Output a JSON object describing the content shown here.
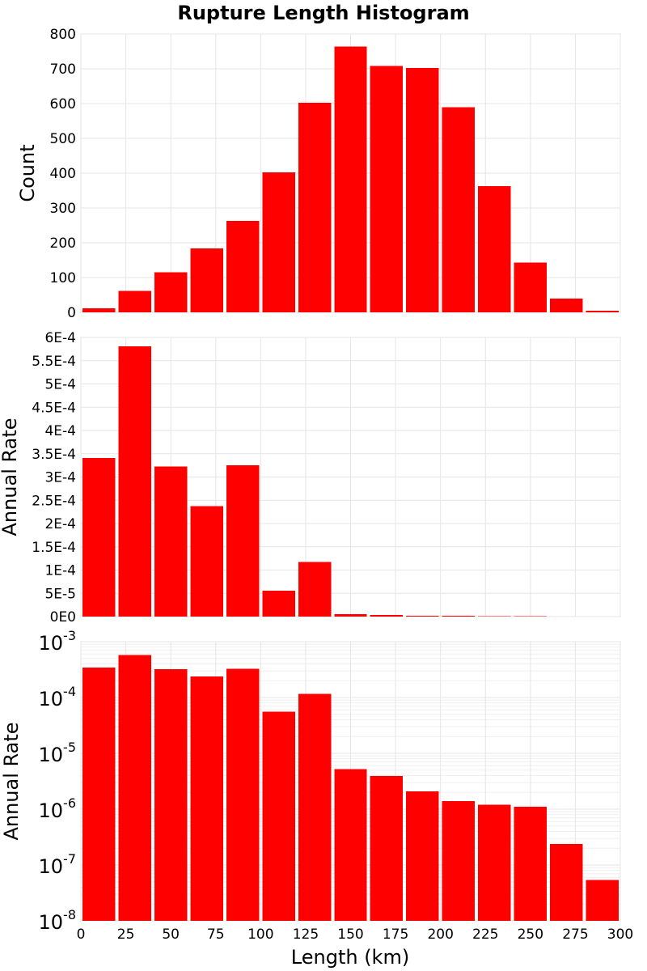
{
  "chart_data": {
    "title": "Rupture Length Histogram",
    "type": "bar",
    "x": {
      "label": "Length (km)",
      "range": [
        0,
        300
      ],
      "ticks": [
        0,
        25,
        50,
        75,
        100,
        125,
        150,
        175,
        200,
        225,
        250,
        275,
        300
      ],
      "tick_labels": [
        "0",
        "25",
        "50",
        "75",
        "100",
        "125",
        "150",
        "175",
        "200",
        "225",
        "250",
        "275",
        "300"
      ]
    },
    "bins": {
      "width": 20,
      "centers": [
        10,
        30,
        50,
        70,
        90,
        110,
        130,
        150,
        170,
        190,
        210,
        230,
        250,
        270,
        290
      ]
    },
    "bar_color": "#ff0000",
    "grid": true,
    "panels": [
      {
        "id": "count",
        "ylabel": "Count",
        "scale": "linear",
        "ylim": [
          0,
          800
        ],
        "yticks": [
          0,
          100,
          200,
          300,
          400,
          500,
          600,
          700,
          800
        ],
        "ytick_labels": [
          "0",
          "100",
          "200",
          "300",
          "400",
          "500",
          "600",
          "700",
          "800"
        ],
        "values": [
          12,
          62,
          115,
          184,
          263,
          402,
          602,
          764,
          708,
          702,
          590,
          363,
          143,
          40,
          5
        ]
      },
      {
        "id": "rate-linear",
        "ylabel": "Annual Rate",
        "scale": "linear",
        "ylim": [
          0,
          0.0006
        ],
        "yticks": [
          0,
          5e-05,
          0.0001,
          0.00015,
          0.0002,
          0.00025,
          0.0003,
          0.00035,
          0.0004,
          0.00045,
          0.0005,
          0.00055,
          0.0006
        ],
        "ytick_labels": [
          "0E0",
          "5E-5",
          "1E-4",
          "1.5E-4",
          "2E-4",
          "2.5E-4",
          "3E-4",
          "3.5E-4",
          "4E-4",
          "4.5E-4",
          "5E-4",
          "5.5E-4",
          "6E-4"
        ],
        "values": [
          0.000341,
          0.000581,
          0.000323,
          0.000237,
          0.000325,
          5.57e-05,
          0.000117,
          5.2e-06,
          3.9e-06,
          2.1e-06,
          1.4e-06,
          1.2e-06,
          1.1e-06,
          2.4e-07,
          5.4e-08
        ]
      },
      {
        "id": "rate-log",
        "ylabel": "Annual Rate",
        "scale": "log",
        "ylim": [
          1e-08,
          0.001
        ],
        "yticks": [
          1e-08,
          1e-07,
          1e-06,
          1e-05,
          0.0001,
          0.001
        ],
        "ytick_base": "10",
        "ytick_exponents": [
          "-8",
          "-7",
          "-6",
          "-5",
          "-4",
          "-3"
        ],
        "values": [
          0.000341,
          0.000581,
          0.000323,
          0.000237,
          0.000325,
          5.57e-05,
          0.000117,
          5.2e-06,
          3.9e-06,
          2.1e-06,
          1.4e-06,
          1.2e-06,
          1.1e-06,
          2.4e-07,
          5.4e-08
        ]
      }
    ]
  }
}
